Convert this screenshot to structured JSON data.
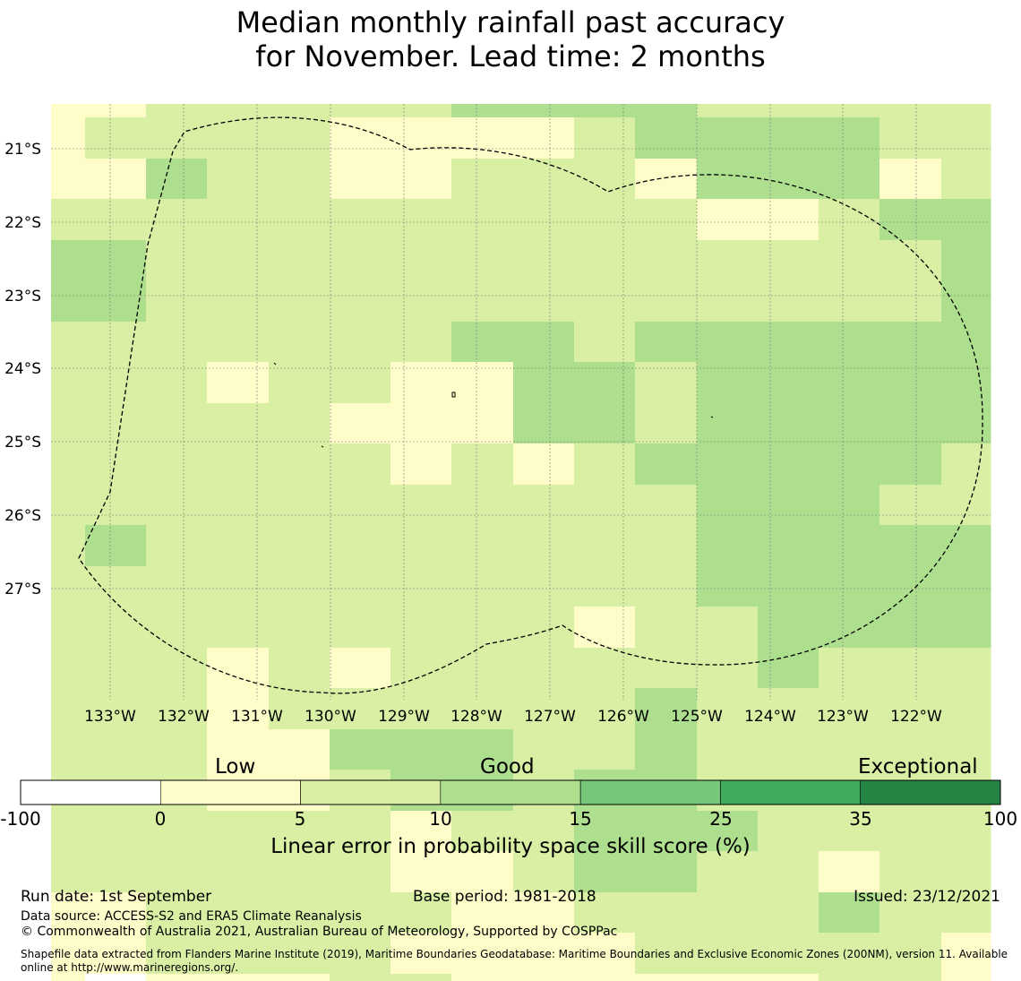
{
  "title": {
    "line1": "Median monthly rainfall past accuracy",
    "line2": "for November. Lead time: 2 months"
  },
  "map": {
    "lat_labels": [
      "21°S",
      "22°S",
      "23°S",
      "24°S",
      "25°S",
      "26°S",
      "27°S"
    ],
    "lon_labels": [
      "133°W",
      "132°W",
      "131°W",
      "130°W",
      "129°W",
      "128°W",
      "127°W",
      "126°W",
      "125°W",
      "124°W",
      "123°W",
      "122°W"
    ],
    "category_colors": [
      "#ffffff",
      "#fefdc9",
      "#d9efa3",
      "#addf8e",
      "#78c679",
      "#41ab5d",
      "#238443"
    ],
    "grid_categories": [
      "1122222333322222",
      "1222211112333322",
      "1132211222133312",
      "2222222222211233",
      "3322222222222223",
      "3322222222222223",
      "2222222332333333",
      "2221221133233333",
      "2222211133233333",
      "2222221212333332",
      "2222222222233322",
      "2322222222233333",
      "2222222222233333",
      "2222222221223333",
      "2221212222223222",
      "2221222222322222",
      "2221133322322222",
      "2221123323322222",
      "2222221223332222",
      "2222221123322122",
      "1122222112222322",
      "1122221111222221",
      "1011122111111221",
      "1111111111111221"
    ]
  },
  "legend": {
    "low": "Low",
    "good": "Good",
    "exceptional": "Exceptional",
    "ticks": [
      "-100",
      "0",
      "5",
      "10",
      "15",
      "25",
      "35",
      "100"
    ],
    "title": "Linear error in probability space skill score (%)"
  },
  "footer": {
    "run_date": "Run date: 1st September",
    "base_period": "Base period: 1981-2018",
    "issued": "Issued: 23/12/2021",
    "data_source": "Data source: ACCESS-S2 and ERA5 Climate Reanalysis",
    "copyright": "© Commonwealth of Australia 2021, Australian Bureau of Meteorology, Supported by COSPPac",
    "shapefile_line1": "Shapefile data extracted from Flanders Marine Institute (2019), Maritime Boundaries Geodatabase: Maritime Boundaries and Exclusive Economic Zones (200NM), version 11. Available",
    "shapefile_line2": "online at http://www.marineregions.org/."
  }
}
